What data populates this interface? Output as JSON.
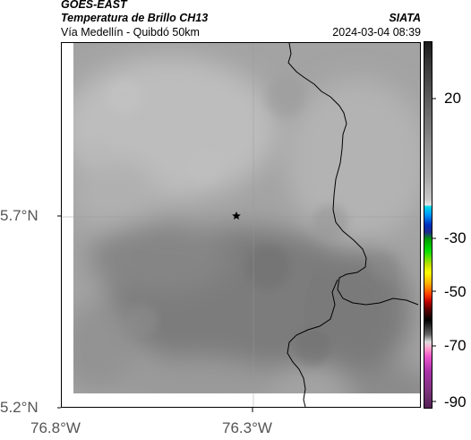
{
  "header": {
    "satellite": "GOES-EAST",
    "product": "Temperatura de Brillo CH13",
    "region": "Vía Medellín - Quibdó 50km",
    "agency": "SIATA",
    "timestamp": "2024-03-04 08:39"
  },
  "map": {
    "lat_labels": [
      "5.7°N",
      "5.2°N"
    ],
    "lon_labels": [
      "76.8°W",
      "76.3°W"
    ],
    "marker": "star-icon",
    "colors": {
      "land_light": "#b9b9b9",
      "cloud_dark": "#7a7a7a",
      "border": "#000000"
    }
  },
  "colorbar": {
    "tick_labels": [
      "20",
      "-30",
      "-50",
      "-70",
      "-90"
    ]
  }
}
